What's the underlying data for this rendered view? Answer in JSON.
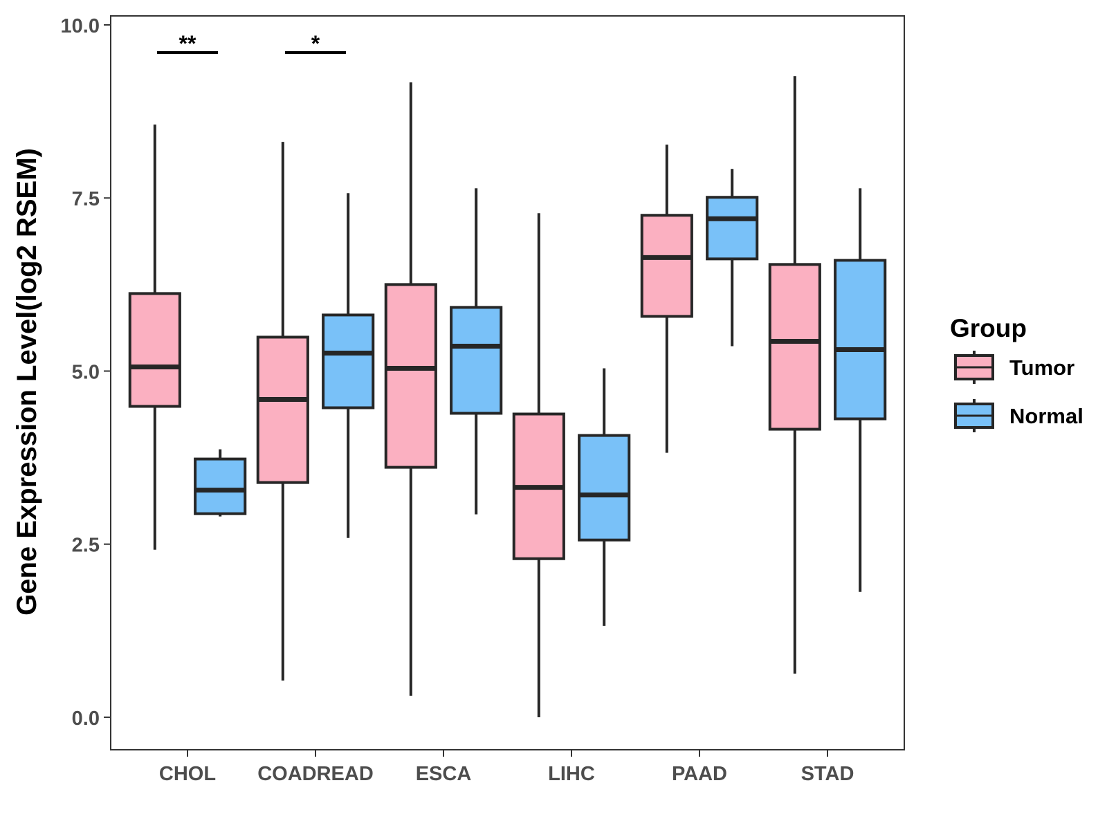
{
  "chart_data": {
    "type": "boxplot",
    "title": "",
    "xlabel": "",
    "ylabel": "Gene Expression Level(log2 RSEM)",
    "ylim": [
      -0.47,
      10.13
    ],
    "yticks": [
      0.0,
      2.5,
      5.0,
      7.5,
      10.0
    ],
    "ytick_labels": [
      "0.0",
      "2.5",
      "5.0",
      "7.5",
      "10.0"
    ],
    "categories": [
      "CHOL",
      "COADREAD",
      "ESCA",
      "LIHC",
      "PAAD",
      "STAD"
    ],
    "legend": {
      "title": "Group",
      "position": "right",
      "entries": [
        {
          "name": "Tumor",
          "color": "#fbb0c1"
        },
        {
          "name": "Normal",
          "color": "#79c1f8"
        }
      ]
    },
    "series": [
      {
        "name": "Tumor",
        "color": "#fbb0c1",
        "boxes": [
          {
            "category": "CHOL",
            "whisker_low": 2.42,
            "q1": 4.49,
            "median": 5.06,
            "q3": 6.12,
            "whisker_high": 8.56
          },
          {
            "category": "COADREAD",
            "whisker_low": 0.53,
            "q1": 3.39,
            "median": 4.59,
            "q3": 5.49,
            "whisker_high": 8.31
          },
          {
            "category": "ESCA",
            "whisker_low": 0.31,
            "q1": 3.61,
            "median": 5.04,
            "q3": 6.25,
            "whisker_high": 9.17
          },
          {
            "category": "LIHC",
            "whisker_low": 0.0,
            "q1": 2.29,
            "median": 3.32,
            "q3": 4.38,
            "whisker_high": 7.28
          },
          {
            "category": "PAAD",
            "whisker_low": 3.82,
            "q1": 5.79,
            "median": 6.64,
            "q3": 7.25,
            "whisker_high": 8.27
          },
          {
            "category": "STAD",
            "whisker_low": 0.63,
            "q1": 4.16,
            "median": 5.43,
            "q3": 6.54,
            "whisker_high": 9.26
          }
        ]
      },
      {
        "name": "Normal",
        "color": "#79c1f8",
        "boxes": [
          {
            "category": "CHOL",
            "whisker_low": 2.9,
            "q1": 2.94,
            "median": 3.28,
            "q3": 3.73,
            "whisker_high": 3.87
          },
          {
            "category": "COADREAD",
            "whisker_low": 2.59,
            "q1": 4.47,
            "median": 5.26,
            "q3": 5.81,
            "whisker_high": 7.57
          },
          {
            "category": "ESCA",
            "whisker_low": 2.93,
            "q1": 4.39,
            "median": 5.36,
            "q3": 5.92,
            "whisker_high": 7.64
          },
          {
            "category": "LIHC",
            "whisker_low": 1.32,
            "q1": 2.56,
            "median": 3.21,
            "q3": 4.07,
            "whisker_high": 5.04
          },
          {
            "category": "PAAD",
            "whisker_low": 5.36,
            "q1": 6.62,
            "median": 7.2,
            "q3": 7.51,
            "whisker_high": 7.92
          },
          {
            "category": "STAD",
            "whisker_low": 1.81,
            "q1": 4.31,
            "median": 5.31,
            "q3": 6.6,
            "whisker_high": 7.64
          }
        ]
      }
    ],
    "annotations": [
      {
        "category": "CHOL",
        "label": "**",
        "y": 9.6
      },
      {
        "category": "COADREAD",
        "label": "*",
        "y": 9.6
      }
    ]
  }
}
